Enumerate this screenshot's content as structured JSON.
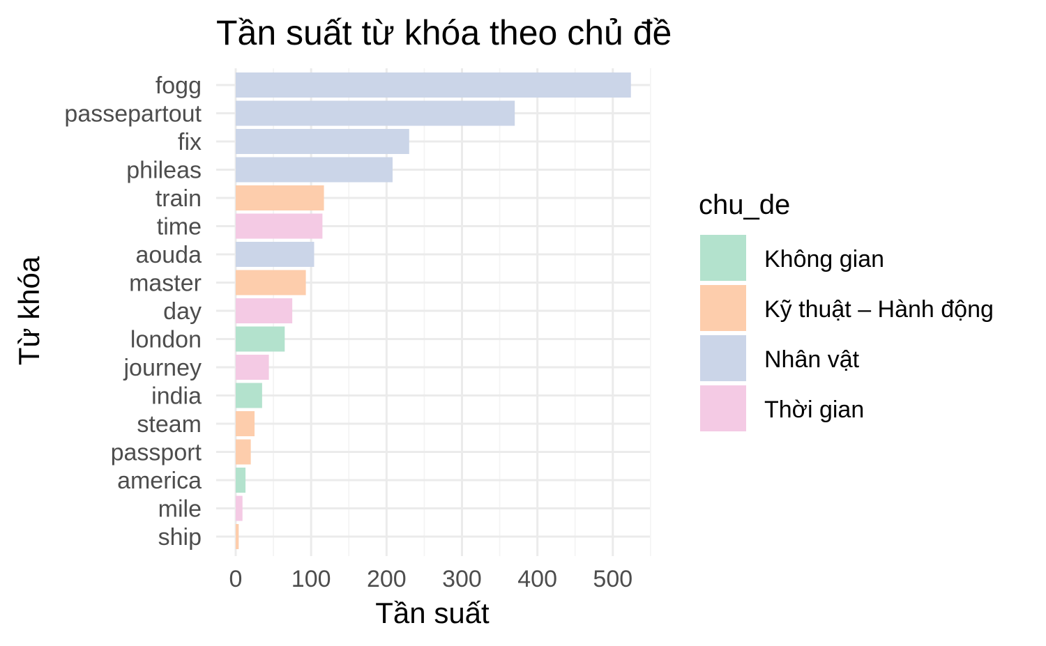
{
  "chart_data": {
    "type": "bar",
    "orientation": "horizontal",
    "title": "Tần suất từ khóa theo chủ đề",
    "xlabel": "Tần suất",
    "ylabel": "Từ khóa",
    "xlim": [
      0,
      550
    ],
    "x_ticks": [
      0,
      100,
      200,
      300,
      400,
      500
    ],
    "grid": true,
    "legend": {
      "title": "chu_de",
      "placement": "right",
      "entries": [
        {
          "label": "Không gian",
          "color": "#b3e2cd"
        },
        {
          "label": "Kỹ thuật – Hành động",
          "color": "#fdcdac"
        },
        {
          "label": "Nhân vật",
          "color": "#cbd5e8"
        },
        {
          "label": "Thời gian",
          "color": "#f4cae4"
        }
      ]
    },
    "categories": [
      "fogg",
      "passepartout",
      "fix",
      "phileas",
      "train",
      "time",
      "aouda",
      "master",
      "day",
      "london",
      "journey",
      "india",
      "steam",
      "passport",
      "america",
      "mile",
      "ship"
    ],
    "values": [
      524,
      370,
      230,
      208,
      117,
      115,
      104,
      93,
      75,
      65,
      44,
      35,
      25,
      20,
      13,
      9,
      4
    ],
    "groups": [
      "Nhân vật",
      "Nhân vật",
      "Nhân vật",
      "Nhân vật",
      "Kỹ thuật – Hành động",
      "Thời gian",
      "Nhân vật",
      "Kỹ thuật – Hành động",
      "Thời gian",
      "Không gian",
      "Thời gian",
      "Không gian",
      "Kỹ thuật – Hành động",
      "Kỹ thuật – Hành động",
      "Không gian",
      "Thời gian",
      "Kỹ thuật – Hành động"
    ]
  }
}
